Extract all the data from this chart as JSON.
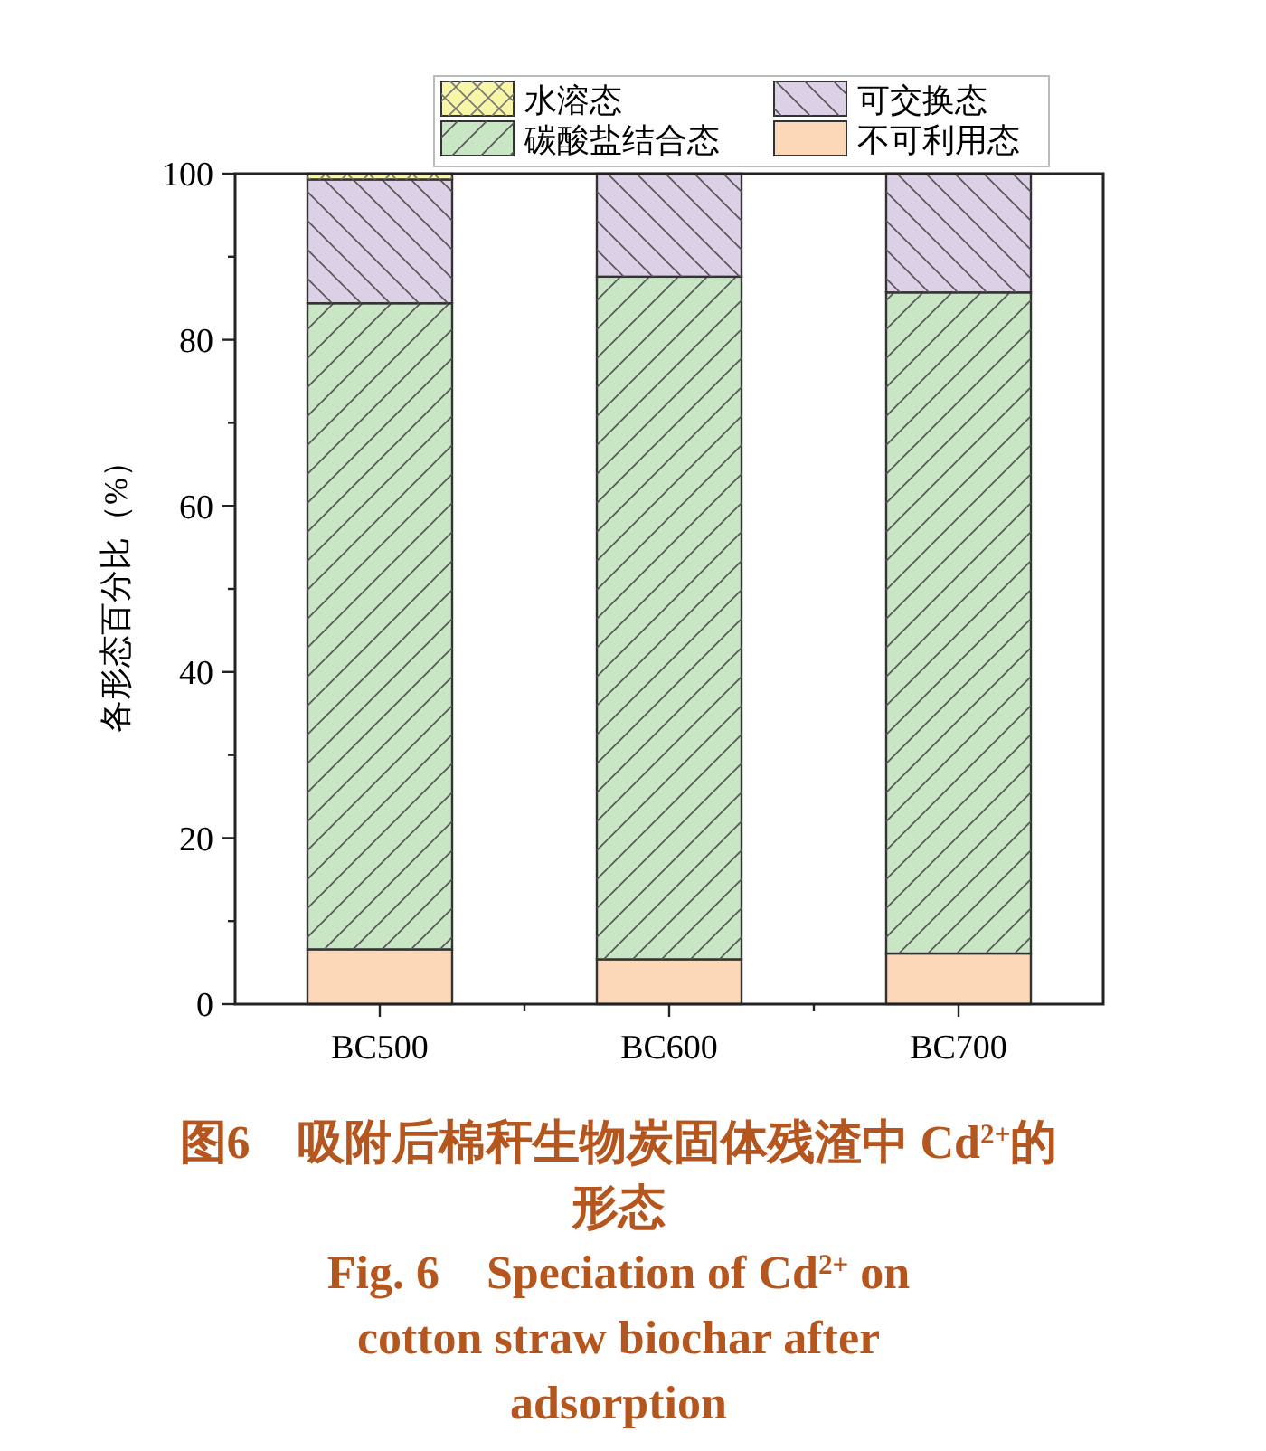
{
  "chart_data": {
    "type": "bar",
    "stacked": true,
    "categories": [
      "BC500",
      "BC600",
      "BC700"
    ],
    "ylabel": "各形态百分比（%）",
    "ylim": [
      0,
      100
    ],
    "yticks": [
      0,
      {
        "value": 10,
        "label": null
      },
      20,
      {
        "value": 30,
        "label": null
      },
      40,
      {
        "value": 50,
        "label": null
      },
      60,
      {
        "value": 70,
        "label": null
      },
      80,
      {
        "value": 90,
        "label": null
      },
      100
    ],
    "legend": "top",
    "series": [
      {
        "name": "不可利用态",
        "color": "#fcd8b8",
        "values": [
          6.6,
          5.4,
          6.1
        ]
      },
      {
        "name": "碳酸盐结合态",
        "color": "#c8e6c4",
        "values": [
          77.8,
          82.2,
          79.6
        ]
      },
      {
        "name": "可交换态",
        "color": "#dcd0e6",
        "values": [
          14.9,
          12.4,
          14.3
        ]
      },
      {
        "name": "水溶态",
        "color": "#f8f4a8",
        "values": [
          0.7,
          0,
          0
        ]
      }
    ],
    "annotations": [
      "图6　吸附后棉秆生物炭固体残渣中 Cd$^{2+}$的形态",
      "Fig. 6　Speciation of Cd$^{2+}$ on cotton straw biochar after adsorption"
    ]
  }
}
